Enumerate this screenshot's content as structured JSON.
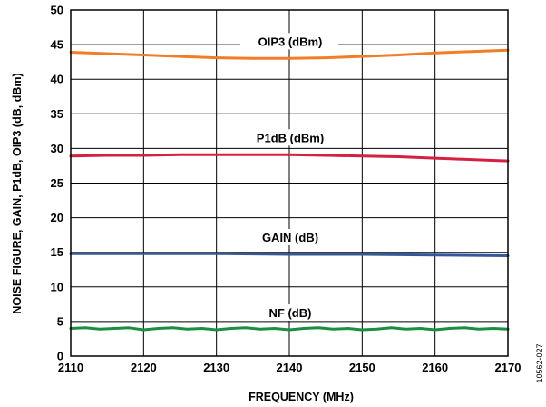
{
  "chart_data": {
    "type": "line",
    "xlabel": "FREQUENCY (MHz)",
    "ylabel": "NOISE FIGURE, GAIN, P1dB, OIP3 (dB, dBm)",
    "xlim": [
      2110,
      2170
    ],
    "ylim": [
      0,
      50
    ],
    "x_ticks": [
      2110,
      2120,
      2130,
      2140,
      2150,
      2160,
      2170
    ],
    "y_ticks": [
      0,
      5,
      10,
      15,
      20,
      25,
      30,
      35,
      40,
      45,
      50
    ],
    "grid": true,
    "legend": "inline labels",
    "figure_id": "10562-027",
    "series": [
      {
        "name": "OIP3 (dBm)",
        "color": "#f07d28",
        "x": [
          2110,
          2115,
          2120,
          2125,
          2130,
          2135,
          2140,
          2145,
          2150,
          2155,
          2160,
          2165,
          2170
        ],
        "y": [
          43.9,
          43.7,
          43.5,
          43.3,
          43.1,
          43.0,
          43.0,
          43.1,
          43.3,
          43.5,
          43.8,
          44.0,
          44.2
        ]
      },
      {
        "name": "P1dB (dBm)",
        "color": "#d3213f",
        "x": [
          2110,
          2115,
          2120,
          2125,
          2130,
          2135,
          2140,
          2145,
          2150,
          2155,
          2160,
          2165,
          2170
        ],
        "y": [
          28.9,
          29.0,
          29.0,
          29.1,
          29.1,
          29.1,
          29.1,
          29.0,
          28.9,
          28.8,
          28.6,
          28.4,
          28.2
        ]
      },
      {
        "name": "GAIN (dB)",
        "color": "#34589b",
        "x": [
          2110,
          2120,
          2130,
          2140,
          2150,
          2160,
          2170
        ],
        "y": [
          14.8,
          14.8,
          14.8,
          14.7,
          14.7,
          14.6,
          14.5
        ]
      },
      {
        "name": "NF (dB)",
        "color": "#1c8e43",
        "x": [
          2110,
          2112,
          2114,
          2116,
          2118,
          2120,
          2122,
          2124,
          2126,
          2128,
          2130,
          2132,
          2134,
          2136,
          2138,
          2140,
          2142,
          2144,
          2146,
          2148,
          2150,
          2152,
          2154,
          2156,
          2158,
          2160,
          2162,
          2164,
          2166,
          2168,
          2170
        ],
        "y": [
          4.0,
          4.1,
          3.9,
          4.0,
          4.1,
          3.8,
          4.0,
          4.1,
          3.9,
          4.0,
          3.8,
          4.0,
          4.1,
          3.9,
          4.0,
          3.8,
          4.0,
          4.1,
          3.9,
          4.0,
          3.8,
          3.9,
          4.1,
          3.9,
          4.0,
          3.8,
          4.0,
          4.1,
          3.9,
          4.0,
          3.9
        ]
      }
    ]
  }
}
